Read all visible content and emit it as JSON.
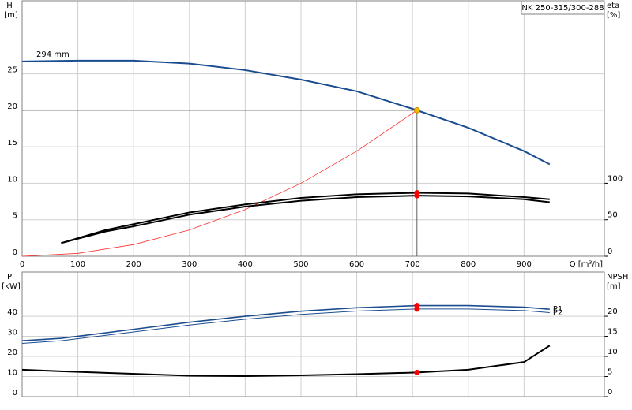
{
  "chart_data": [
    {
      "type": "line",
      "title": "NK 250-315/300-288",
      "ylabel": "H",
      "yunit": "[m]",
      "y2label": "eta",
      "y2unit": "[%]",
      "xlabel": "Q [m³/h]",
      "xlim": [
        0,
        1044
      ],
      "xticks": [
        0,
        100,
        200,
        300,
        400,
        500,
        600,
        700,
        800,
        900
      ],
      "ylim": [
        0,
        35
      ],
      "yticks": [
        0,
        5,
        10,
        15,
        20,
        25
      ],
      "y2lim": [
        0,
        350
      ],
      "y2ticks": [
        0,
        50,
        100
      ],
      "grid": true,
      "xtick_labels": true,
      "series": [
        {
          "name": "294 mm",
          "label_position": "start",
          "color": "#1a4d8f",
          "width": 2,
          "x": [
            0,
            100,
            200,
            300,
            400,
            500,
            600,
            700,
            800,
            900,
            946
          ],
          "values": [
            26.7,
            26.8,
            26.8,
            26.4,
            25.5,
            24.2,
            22.6,
            20.2,
            17.6,
            14.4,
            12.6
          ]
        },
        {
          "color": "#ff3030",
          "width": 0.8,
          "x": [
            0,
            100,
            200,
            300,
            400,
            500,
            600,
            708
          ],
          "values": [
            0,
            0.4,
            1.6,
            3.6,
            6.4,
            10,
            14.4,
            20
          ]
        },
        {
          "color": "#000000",
          "width": 2,
          "axis": "y2",
          "x": [
            70,
            150,
            200,
            300,
            400,
            500,
            600,
            708,
            800,
            900,
            946
          ],
          "values": [
            18,
            36,
            44,
            60,
            71,
            80,
            85,
            87,
            86,
            81,
            78
          ]
        },
        {
          "color": "#000000",
          "width": 2,
          "axis": "y2",
          "x": [
            70,
            150,
            200,
            300,
            400,
            500,
            600,
            708,
            800,
            900,
            946
          ],
          "values": [
            18,
            34,
            41,
            57,
            68,
            76,
            81,
            83,
            82,
            78,
            74
          ]
        }
      ],
      "points": [
        {
          "x": 708,
          "y": 20,
          "color": "#f5b800",
          "guides": true
        },
        {
          "x": 708,
          "y": 87,
          "axis": "y2",
          "color": "#ff0000"
        },
        {
          "x": 708,
          "y": 83,
          "axis": "y2",
          "color": "#ff0000"
        }
      ]
    },
    {
      "type": "line",
      "ylabel": "P",
      "yunit": "[kW]",
      "y2label": "NPSH",
      "y2unit": "[m]",
      "xlim": [
        0,
        1044
      ],
      "xticks": [
        0,
        100,
        200,
        300,
        400,
        500,
        600,
        700,
        800,
        900
      ],
      "ylim": [
        0,
        62
      ],
      "yticks": [
        0,
        10,
        20,
        30,
        40
      ],
      "y2lim": [
        0,
        31
      ],
      "y2ticks": [
        0,
        5,
        10,
        15,
        20
      ],
      "grid": true,
      "xtick_labels": false,
      "series": [
        {
          "name": "P1",
          "label_position": "end",
          "color": "#1a4d8f",
          "width": 1.6,
          "x": [
            0,
            70,
            200,
            300,
            400,
            500,
            600,
            708,
            800,
            900,
            946
          ],
          "values": [
            27.8,
            29,
            33.5,
            37,
            40,
            42.5,
            44.2,
            45.3,
            45.3,
            44.5,
            43.5
          ]
        },
        {
          "name": "P2",
          "label_position": "end",
          "color": "#1a4d8f",
          "width": 1,
          "x": [
            0,
            70,
            200,
            300,
            400,
            500,
            600,
            708,
            800,
            900,
            946
          ],
          "values": [
            26.5,
            27.8,
            32.2,
            35.6,
            38.5,
            40.9,
            42.6,
            43.6,
            43.6,
            42.8,
            41.8
          ]
        },
        {
          "color": "#000000",
          "width": 2,
          "axis": "y2",
          "x": [
            0,
            70,
            300,
            400,
            500,
            600,
            708,
            800,
            900,
            946
          ],
          "values": [
            6.7,
            6.3,
            5.2,
            5.1,
            5.3,
            5.6,
            6.0,
            6.7,
            8.6,
            12.7
          ]
        }
      ],
      "points": [
        {
          "x": 708,
          "y": 45.3,
          "color": "#ff0000"
        },
        {
          "x": 708,
          "y": 43.6,
          "color": "#ff0000"
        },
        {
          "x": 708,
          "y": 6.0,
          "axis": "y2",
          "color": "#ff0000"
        }
      ]
    }
  ]
}
